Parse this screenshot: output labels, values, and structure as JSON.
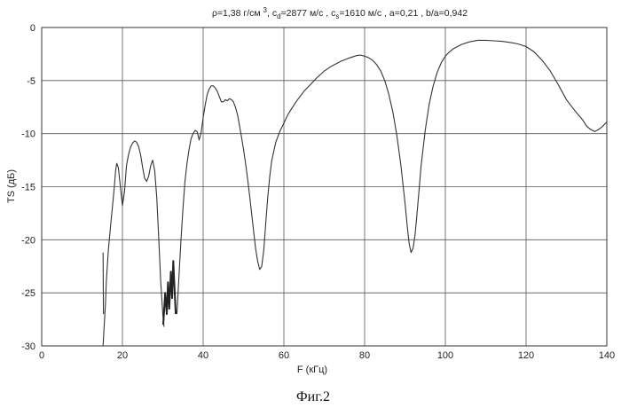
{
  "chart_data": {
    "type": "line",
    "title_parts": [
      {
        "t": "ρ=1,38 г/см "
      },
      {
        "t": "3",
        "s": "sup"
      },
      {
        "t": ", c"
      },
      {
        "t": "d",
        "s": "sub"
      },
      {
        "t": "=2877 м/с , c"
      },
      {
        "t": "s",
        "s": "sub"
      },
      {
        "t": "=1610 м/с , a=0,21    , b/a=0,942"
      }
    ],
    "xlabel": "F (кГц)",
    "ylabel": "TS (дБ)",
    "xlim": [
      0,
      140
    ],
    "ylim": [
      -30,
      0
    ],
    "xticks": [
      0,
      20,
      40,
      60,
      80,
      100,
      120,
      140
    ],
    "yticks": [
      0,
      -5,
      -10,
      -15,
      -20,
      -25,
      -30
    ],
    "grid": true,
    "caption": "Фиг.2",
    "series": [
      {
        "style": "thin",
        "x": [
          15.2,
          15.5,
          15.8,
          16.0,
          16.5,
          17.0,
          17.5,
          18.0,
          18.3,
          18.6,
          19.0,
          19.5,
          20.0,
          20.5,
          21.0,
          21.5,
          22.0,
          22.5,
          23.0,
          23.5,
          24.0,
          24.5,
          25.0,
          25.5,
          26.0,
          26.5,
          27.0,
          27.5,
          28.0,
          28.5,
          29.0,
          29.5,
          30.0,
          30.3
        ],
        "y": [
          -30,
          -28,
          -26,
          -24,
          -21,
          -19,
          -17,
          -15,
          -13.5,
          -12.8,
          -13.2,
          -15.0,
          -16.8,
          -15.5,
          -13.0,
          -12.0,
          -11.3,
          -10.9,
          -10.7,
          -10.8,
          -11.2,
          -12.0,
          -13.2,
          -14.2,
          -14.5,
          -14.0,
          -13.0,
          -12.5,
          -13.5,
          -16.0,
          -20.0,
          -24.0,
          -27.0,
          -28.2
        ]
      },
      {
        "style": "thick",
        "x": [
          30.1,
          30.6,
          31.0,
          31.3,
          31.6,
          32.0,
          32.3,
          32.6,
          32.9,
          33.2
        ],
        "y": [
          -28.0,
          -25.0,
          -27.0,
          -24.0,
          -26.5,
          -23.0,
          -25.5,
          -22.0,
          -24.5,
          -27.0
        ]
      },
      {
        "style": "thin",
        "x": [
          33.5,
          34.0,
          34.5,
          35.0,
          35.5,
          36.0,
          36.5,
          37.0,
          37.5,
          38.0,
          38.5,
          39.0,
          39.5,
          40.0,
          40.5,
          41.0,
          41.5,
          42.0,
          42.5,
          43.0,
          43.5,
          44.0,
          44.5,
          45.0,
          45.5,
          46.0,
          46.5,
          47.0,
          47.5,
          48.0,
          48.5,
          49.0,
          49.5,
          50.0,
          50.5,
          51.0,
          51.5,
          52.0,
          52.5,
          53.0,
          53.5,
          54.0,
          54.5,
          55.0,
          55.5,
          56.0,
          56.5,
          57.0,
          58.0,
          59.0,
          60.0,
          61.0,
          62.0,
          63.0,
          64.0,
          65.0,
          66.0,
          67.0,
          68.0,
          70.0,
          72.0,
          74.0,
          76.0,
          78.0,
          79.0,
          80.0,
          81.0,
          82.0,
          83.0,
          84.0,
          85.0,
          86.0,
          87.0,
          88.0,
          89.0,
          90.0,
          90.5,
          91.0,
          91.5,
          92.0,
          92.5,
          93.0,
          93.5,
          94.0,
          95.0,
          96.0,
          97.0,
          98.0,
          99.0,
          100.0,
          101.0,
          102.0,
          103.0,
          104.0,
          106.0,
          108.0,
          110.0,
          112.0,
          114.0,
          116.0,
          118.0,
          120.0,
          122.0,
          124.0,
          126.0,
          128.0,
          130.0,
          132.0,
          134.0,
          135.0,
          136.0,
          137.0,
          138.0,
          139.0,
          140.0
        ],
        "y": [
          -27.0,
          -23.5,
          -20.0,
          -17.0,
          -14.5,
          -12.8,
          -11.5,
          -10.5,
          -10.0,
          -9.7,
          -9.8,
          -10.6,
          -9.9,
          -8.5,
          -7.3,
          -6.3,
          -5.8,
          -5.5,
          -5.5,
          -5.7,
          -6.0,
          -6.5,
          -7.0,
          -7.0,
          -6.8,
          -6.9,
          -6.7,
          -6.8,
          -7.0,
          -7.5,
          -8.2,
          -9.2,
          -10.3,
          -11.5,
          -12.8,
          -14.2,
          -15.8,
          -17.5,
          -19.2,
          -20.8,
          -22.0,
          -22.8,
          -22.5,
          -21.0,
          -18.5,
          -16.0,
          -14.0,
          -12.5,
          -10.8,
          -9.8,
          -9.0,
          -8.2,
          -7.6,
          -7.0,
          -6.5,
          -6.0,
          -5.6,
          -5.2,
          -4.8,
          -4.1,
          -3.6,
          -3.2,
          -2.9,
          -2.65,
          -2.6,
          -2.7,
          -2.85,
          -3.1,
          -3.5,
          -4.1,
          -5.0,
          -6.3,
          -8.0,
          -10.2,
          -13.0,
          -16.5,
          -18.5,
          -20.3,
          -21.2,
          -20.8,
          -19.5,
          -17.5,
          -15.3,
          -13.0,
          -9.7,
          -7.2,
          -5.5,
          -4.2,
          -3.3,
          -2.7,
          -2.3,
          -2.0,
          -1.8,
          -1.6,
          -1.35,
          -1.2,
          -1.2,
          -1.25,
          -1.3,
          -1.4,
          -1.55,
          -1.8,
          -2.3,
          -3.1,
          -4.1,
          -5.4,
          -6.8,
          -7.8,
          -8.7,
          -9.3,
          -9.6,
          -9.8,
          -9.6,
          -9.3,
          -8.9
        ]
      },
      {
        "style": "thin",
        "x": [
          15.2,
          15.3
        ],
        "y": [
          -21.2,
          -27.0
        ]
      }
    ]
  }
}
